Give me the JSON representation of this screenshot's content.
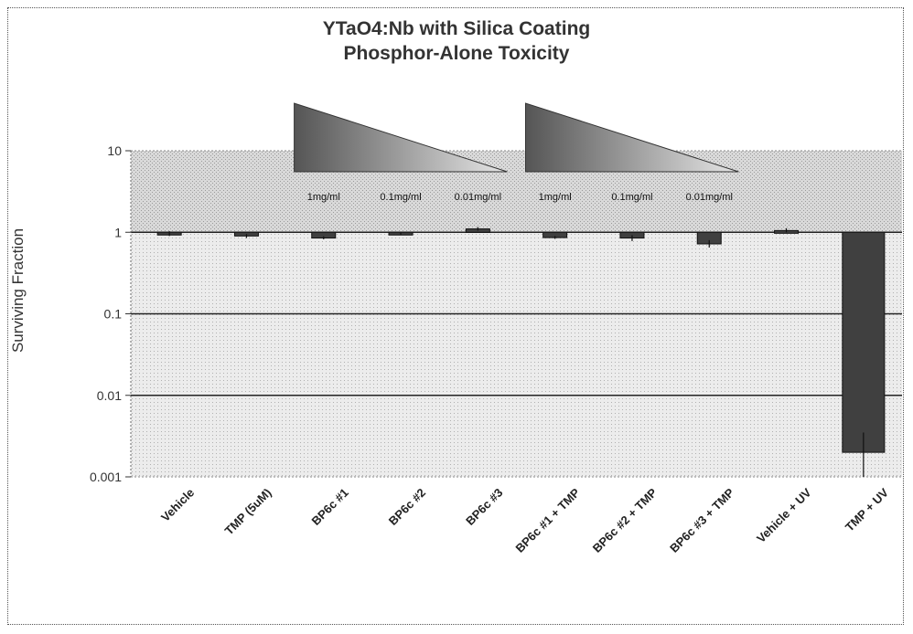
{
  "chart_data": {
    "type": "bar",
    "title": "YTaO4:Nb with Silica Coating",
    "subtitle": "Phosphor-Alone Toxicity",
    "ylabel": "Surviving Fraction",
    "xlabel": "",
    "yscale": "log",
    "ylim": [
      0.001,
      10
    ],
    "yticks": [
      "10",
      "1",
      "0.1",
      "0.01",
      "0.001"
    ],
    "grid": true,
    "legend": "none",
    "bar_color": "#404040",
    "categories": [
      "Vehicle",
      "TMP (5uM)",
      "BP6c #1",
      "BP6c #2",
      "BP6c #3",
      "BP6c #1 + TMP",
      "BP6c #2 + TMP",
      "BP6c #3 + TMP",
      "Vehicle + UV",
      "TMP + UV"
    ],
    "values": [
      0.97,
      0.9,
      0.85,
      0.97,
      1.1,
      0.86,
      0.85,
      0.72,
      1.05,
      0.002
    ],
    "error_low": [
      0.9,
      0.85,
      0.82,
      0.93,
      1.05,
      0.83,
      0.78,
      0.65,
      1.0,
      0.001
    ],
    "error_high": [
      1.03,
      0.95,
      0.89,
      1.01,
      1.16,
      0.9,
      0.92,
      0.8,
      1.12,
      0.0035
    ],
    "annotations": [
      {
        "text": "1mg/ml",
        "category_index": 2
      },
      {
        "text": "0.1mg/ml",
        "category_index": 3
      },
      {
        "text": "0.01mg/ml",
        "category_index": 4
      },
      {
        "text": "1mg/ml",
        "category_index": 5
      },
      {
        "text": "0.1mg/ml",
        "category_index": 6
      },
      {
        "text": "0.01mg/ml",
        "category_index": 7
      }
    ],
    "concentration_wedges": [
      {
        "from_category": 2,
        "to_category": 4
      },
      {
        "from_category": 5,
        "to_category": 7
      }
    ]
  }
}
